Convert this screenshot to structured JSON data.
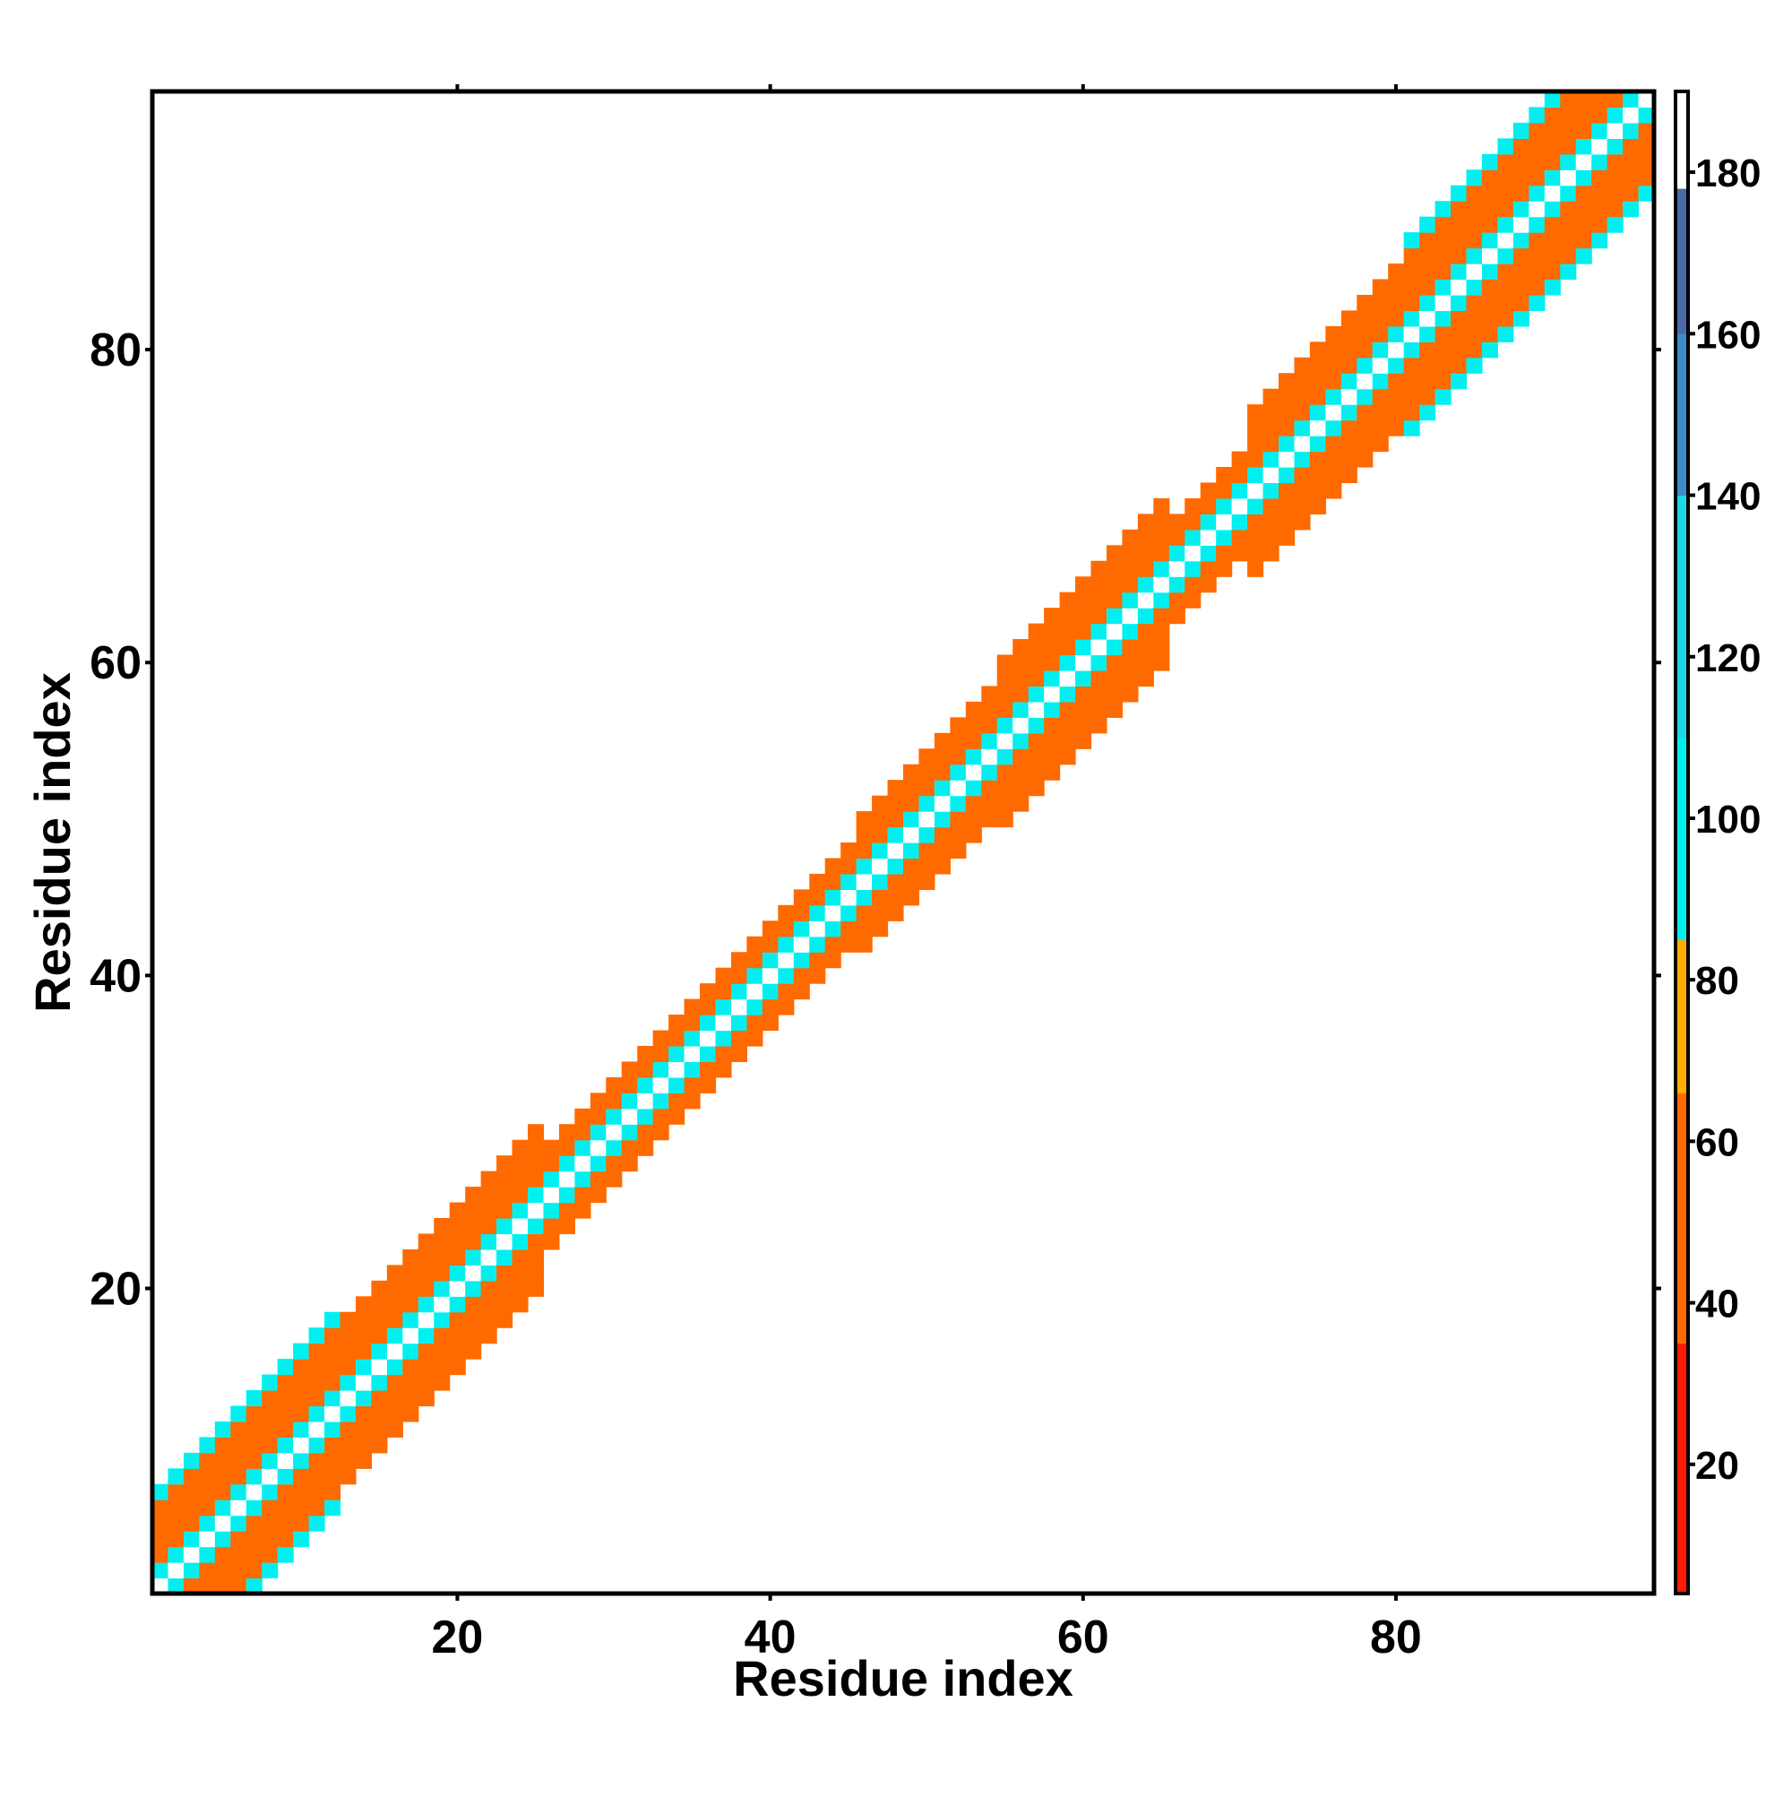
{
  "chart_data": {
    "type": "heatmap",
    "title": "",
    "xlabel": "Residue index",
    "ylabel": "Residue index",
    "xlim": [
      1,
      96
    ],
    "ylim": [
      1,
      96
    ],
    "x_ticks": [
      20,
      40,
      60,
      80
    ],
    "y_ticks": [
      20,
      40,
      60,
      80
    ],
    "x_tick_labels": [
      "20",
      "40",
      "60",
      "80"
    ],
    "y_tick_labels": [
      "20",
      "40",
      "60",
      "80"
    ],
    "colorbar": {
      "range": [
        4,
        190
      ],
      "ticks": [
        20,
        40,
        60,
        80,
        100,
        120,
        140,
        160,
        180
      ],
      "tick_labels": [
        "20",
        "40",
        "60",
        "80",
        "100",
        "120",
        "140",
        "160",
        "180"
      ],
      "colors": {
        "red": "#ff1a00",
        "orange": "#ff6a00",
        "amber": "#ffae00",
        "cyan": "#00f0f0",
        "lightblue": "#1ad8e8",
        "steelblue": "#3a8ec8",
        "slate": "#4a6aa8",
        "white": "#ffffff"
      }
    },
    "value_pattern_by_distance": [
      {
        "distance": 0,
        "value": 185
      },
      {
        "distance": 1,
        "value": 92
      },
      {
        "distance": 2,
        "value": 48
      },
      {
        "distance": 3,
        "value": 38
      },
      {
        "distance": 4,
        "value": 48
      },
      {
        "distance": 5,
        "value": 38
      },
      {
        "distance": 6,
        "value": 95
      }
    ],
    "band_half_width_segments": [
      {
        "from": 1,
        "to": 13,
        "half_width": 6
      },
      {
        "from": 13,
        "to": 26,
        "half_width": 5
      },
      {
        "from": 26,
        "to": 33,
        "half_width": 3
      },
      {
        "from": 33,
        "to": 38,
        "half_width": 3
      },
      {
        "from": 38,
        "to": 46,
        "half_width": 3
      },
      {
        "from": 46,
        "to": 55,
        "half_width": 4
      },
      {
        "from": 55,
        "to": 66,
        "half_width": 5
      },
      {
        "from": 66,
        "to": 71,
        "half_width": 3
      },
      {
        "from": 71,
        "to": 81,
        "half_width": 5
      },
      {
        "from": 81,
        "to": 96,
        "half_width": 6
      }
    ]
  }
}
